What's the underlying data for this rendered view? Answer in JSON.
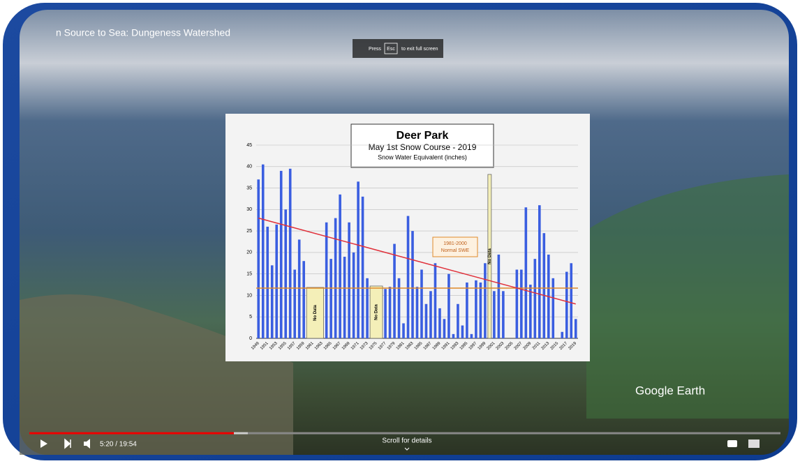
{
  "video": {
    "title": "n Source to Sea: Dungeness Watershed",
    "esc_hint": {
      "prefix": "Press",
      "key": "Esc",
      "suffix": "to exit full screen"
    },
    "time": "5:20 / 19:54",
    "scroll_hint": "Scroll for details",
    "watermark": "Google Earth"
  },
  "chart": {
    "type": "bar",
    "title": "Deer Park",
    "subtitle": "May 1st Snow Course - 2019",
    "subtitle2": "Snow Water Equivalent (inches)",
    "color": "#3a5ee0",
    "categories": [
      "1949",
      null,
      "1951",
      null,
      "1953",
      null,
      "1955",
      null,
      "1957",
      null,
      "1959",
      null,
      "1961",
      null,
      "1963",
      null,
      "1965",
      null,
      "1967",
      null,
      "1969",
      null,
      "1971",
      null,
      "1973",
      null,
      "1975",
      null,
      "1977",
      null,
      "1979",
      null,
      "1981",
      null,
      "1983",
      null,
      "1985",
      null,
      "1987",
      null,
      "1989",
      null,
      "1991",
      null,
      "1993",
      null,
      "1995",
      null,
      "1997",
      null,
      "1999",
      null,
      "2001",
      null,
      "2003",
      null,
      "2005",
      null,
      "2007",
      null,
      "2009",
      null,
      "2011",
      null,
      "2013",
      null,
      "2015",
      null,
      "2017",
      null,
      "2019"
    ],
    "values": [
      37,
      40.5,
      26,
      17,
      26.5,
      39,
      30,
      39.5,
      16,
      23,
      18,
      null,
      null,
      null,
      null,
      27,
      18.5,
      28,
      33.5,
      19,
      27,
      20,
      36.5,
      33,
      14,
      null,
      null,
      null,
      11.5,
      12,
      22,
      14,
      3.5,
      28.5,
      25,
      12,
      16,
      8,
      11,
      17.5,
      7,
      4.5,
      15,
      1,
      8,
      3,
      13,
      1,
      13.5,
      13,
      17.5,
      null,
      11,
      19.5,
      11,
      null,
      null,
      16,
      16,
      30.5,
      12.5,
      18.5,
      31,
      24.5,
      19.5,
      14,
      null,
      1.5,
      15.5,
      17.5,
      4.5
    ],
    "ylim": [
      0,
      45
    ],
    "yticks": [
      0,
      5,
      10,
      15,
      20,
      25,
      30,
      35,
      40,
      45
    ],
    "normal_swe": 11.7,
    "normal_label": [
      "1981-2000",
      "Normal SWE"
    ],
    "trend_line": [
      28,
      8
    ],
    "no_data_labels": [
      "No Data",
      "No Data",
      "No Data"
    ]
  }
}
